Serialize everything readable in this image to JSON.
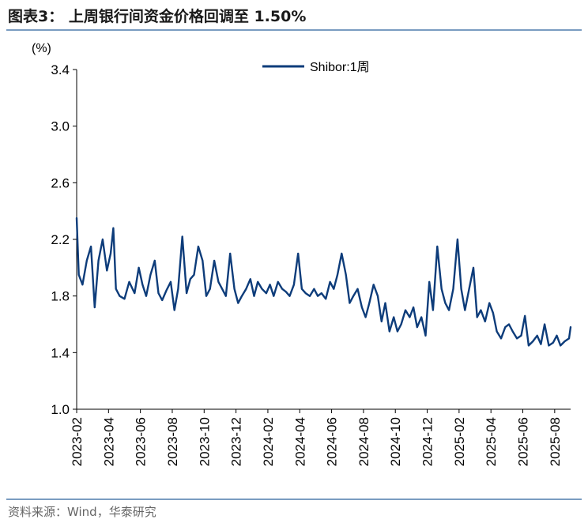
{
  "header": {
    "title": "图表3： 上周银行间资金价格回调至 1.50%"
  },
  "footer": {
    "source": "资料来源：Wind，华泰研究"
  },
  "colors": {
    "series": "#0d3c7a",
    "axis": "#000000",
    "rule": "#7a9cc1"
  },
  "chart_data": {
    "type": "line",
    "title": "",
    "ylabel": "(%)",
    "xlabel": "",
    "ylim": [
      1.0,
      3.4
    ],
    "yticks": [
      1.0,
      1.4,
      1.8,
      2.2,
      2.6,
      3.0,
      3.4
    ],
    "ytick_labels": [
      "1.0",
      "1.4",
      "1.8",
      "2.2",
      "2.6",
      "3.0",
      "3.4"
    ],
    "xticks": [
      "2023-02",
      "2023-04",
      "2023-06",
      "2023-08",
      "2023-10",
      "2023-12",
      "2024-02",
      "2024-04",
      "2024-06",
      "2024-08",
      "2024-10",
      "2024-12",
      "2025-02",
      "2025-04",
      "2025-06",
      "2025-08"
    ],
    "x_range": [
      "2023-02",
      "2025-09"
    ],
    "grid": false,
    "legend": "top-center",
    "series": [
      {
        "name": "Shibor:1周",
        "points": [
          [
            "2023-02",
            2.35
          ],
          [
            "2023-02-05",
            1.95
          ],
          [
            "2023-02-12",
            1.88
          ],
          [
            "2023-02-20",
            2.05
          ],
          [
            "2023-02-28",
            2.15
          ],
          [
            "2023-03-05",
            1.72
          ],
          [
            "2023-03-12",
            2.05
          ],
          [
            "2023-03-20",
            2.2
          ],
          [
            "2023-03-28",
            1.98
          ],
          [
            "2023-04-05",
            2.1
          ],
          [
            "2023-04-10",
            2.28
          ],
          [
            "2023-04-15",
            1.85
          ],
          [
            "2023-04-22",
            1.8
          ],
          [
            "2023-05-01",
            1.78
          ],
          [
            "2023-05-10",
            1.9
          ],
          [
            "2023-05-20",
            1.82
          ],
          [
            "2023-05-28",
            2.0
          ],
          [
            "2023-06-05",
            1.88
          ],
          [
            "2023-06-12",
            1.8
          ],
          [
            "2023-06-20",
            1.95
          ],
          [
            "2023-06-28",
            2.05
          ],
          [
            "2023-07-05",
            1.82
          ],
          [
            "2023-07-12",
            1.77
          ],
          [
            "2023-07-20",
            1.84
          ],
          [
            "2023-07-28",
            1.9
          ],
          [
            "2023-08-05",
            1.7
          ],
          [
            "2023-08-12",
            1.85
          ],
          [
            "2023-08-20",
            2.22
          ],
          [
            "2023-08-28",
            1.82
          ],
          [
            "2023-09-05",
            1.92
          ],
          [
            "2023-09-12",
            1.95
          ],
          [
            "2023-09-20",
            2.15
          ],
          [
            "2023-09-28",
            2.05
          ],
          [
            "2023-10-05",
            1.8
          ],
          [
            "2023-10-12",
            1.85
          ],
          [
            "2023-10-20",
            2.05
          ],
          [
            "2023-10-28",
            1.9
          ],
          [
            "2023-11-05",
            1.85
          ],
          [
            "2023-11-12",
            1.8
          ],
          [
            "2023-11-20",
            2.1
          ],
          [
            "2023-11-28",
            1.85
          ],
          [
            "2023-12-05",
            1.75
          ],
          [
            "2023-12-12",
            1.8
          ],
          [
            "2023-12-20",
            1.85
          ],
          [
            "2023-12-28",
            1.92
          ],
          [
            "2024-01-05",
            1.8
          ],
          [
            "2024-01-12",
            1.9
          ],
          [
            "2024-01-20",
            1.85
          ],
          [
            "2024-01-28",
            1.82
          ],
          [
            "2024-02-05",
            1.88
          ],
          [
            "2024-02-12",
            1.8
          ],
          [
            "2024-02-20",
            1.9
          ],
          [
            "2024-02-28",
            1.85
          ],
          [
            "2024-03-05",
            1.83
          ],
          [
            "2024-03-12",
            1.8
          ],
          [
            "2024-03-20",
            1.88
          ],
          [
            "2024-03-28",
            2.1
          ],
          [
            "2024-04-05",
            1.85
          ],
          [
            "2024-04-12",
            1.82
          ],
          [
            "2024-04-20",
            1.8
          ],
          [
            "2024-04-28",
            1.85
          ],
          [
            "2024-05-05",
            1.8
          ],
          [
            "2024-05-12",
            1.82
          ],
          [
            "2024-05-20",
            1.78
          ],
          [
            "2024-05-28",
            1.9
          ],
          [
            "2024-06-05",
            1.85
          ],
          [
            "2024-06-12",
            1.95
          ],
          [
            "2024-06-20",
            2.1
          ],
          [
            "2024-06-28",
            1.95
          ],
          [
            "2024-07-05",
            1.75
          ],
          [
            "2024-07-12",
            1.8
          ],
          [
            "2024-07-20",
            1.85
          ],
          [
            "2024-07-28",
            1.72
          ],
          [
            "2024-08-05",
            1.65
          ],
          [
            "2024-08-12",
            1.75
          ],
          [
            "2024-08-20",
            1.88
          ],
          [
            "2024-08-28",
            1.8
          ],
          [
            "2024-09-05",
            1.62
          ],
          [
            "2024-09-12",
            1.75
          ],
          [
            "2024-09-20",
            1.55
          ],
          [
            "2024-09-28",
            1.65
          ],
          [
            "2024-10-05",
            1.55
          ],
          [
            "2024-10-12",
            1.6
          ],
          [
            "2024-10-20",
            1.7
          ],
          [
            "2024-10-28",
            1.65
          ],
          [
            "2024-11-05",
            1.72
          ],
          [
            "2024-11-12",
            1.58
          ],
          [
            "2024-11-20",
            1.65
          ],
          [
            "2024-11-28",
            1.52
          ],
          [
            "2024-12-05",
            1.9
          ],
          [
            "2024-12-12",
            1.7
          ],
          [
            "2024-12-20",
            2.15
          ],
          [
            "2024-12-28",
            1.85
          ],
          [
            "2025-01-05",
            1.75
          ],
          [
            "2025-01-12",
            1.7
          ],
          [
            "2025-01-20",
            1.85
          ],
          [
            "2025-01-28",
            2.2
          ],
          [
            "2025-02-05",
            1.85
          ],
          [
            "2025-02-12",
            1.7
          ],
          [
            "2025-02-20",
            1.85
          ],
          [
            "2025-02-28",
            2.0
          ],
          [
            "2025-03-05",
            1.65
          ],
          [
            "2025-03-12",
            1.7
          ],
          [
            "2025-03-20",
            1.62
          ],
          [
            "2025-03-28",
            1.75
          ],
          [
            "2025-04-05",
            1.68
          ],
          [
            "2025-04-12",
            1.55
          ],
          [
            "2025-04-20",
            1.5
          ],
          [
            "2025-04-28",
            1.58
          ],
          [
            "2025-05-05",
            1.6
          ],
          [
            "2025-05-12",
            1.55
          ],
          [
            "2025-05-20",
            1.5
          ],
          [
            "2025-05-28",
            1.52
          ],
          [
            "2025-06-05",
            1.66
          ],
          [
            "2025-06-12",
            1.45
          ],
          [
            "2025-06-20",
            1.48
          ],
          [
            "2025-06-28",
            1.52
          ],
          [
            "2025-07-05",
            1.46
          ],
          [
            "2025-07-12",
            1.6
          ],
          [
            "2025-07-20",
            1.45
          ],
          [
            "2025-07-28",
            1.47
          ],
          [
            "2025-08-05",
            1.52
          ],
          [
            "2025-08-12",
            1.45
          ],
          [
            "2025-08-20",
            1.48
          ],
          [
            "2025-08-28",
            1.5
          ],
          [
            "2025-09-01",
            1.58
          ]
        ]
      }
    ]
  }
}
